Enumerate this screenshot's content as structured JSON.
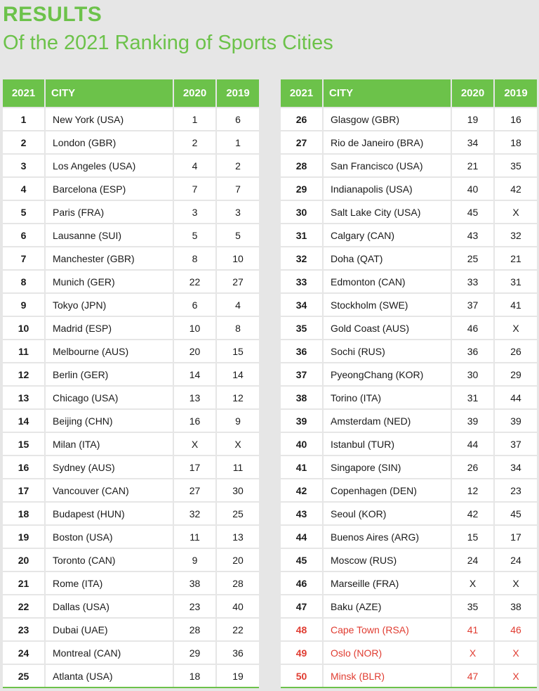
{
  "title": "RESULTS",
  "subtitle": "Of the 2021 Ranking of Sports Cities",
  "headers": {
    "rank": "2021",
    "city": "CITY",
    "y2020": "2020",
    "y2019": "2019"
  },
  "colors": {
    "accent": "#6cc24a",
    "highlight": "#e03c31"
  },
  "left_rows": [
    [
      "1",
      "New York (USA)",
      "1",
      "6"
    ],
    [
      "2",
      "London (GBR)",
      "2",
      "1"
    ],
    [
      "3",
      "Los Angeles (USA)",
      "4",
      "2"
    ],
    [
      "4",
      "Barcelona (ESP)",
      "7",
      "7"
    ],
    [
      "5",
      "Paris (FRA)",
      "3",
      "3"
    ],
    [
      "6",
      "Lausanne (SUI)",
      "5",
      "5"
    ],
    [
      "7",
      "Manchester (GBR)",
      "8",
      "10"
    ],
    [
      "8",
      "Munich (GER)",
      "22",
      "27"
    ],
    [
      "9",
      "Tokyo (JPN)",
      "6",
      "4"
    ],
    [
      "10",
      "Madrid (ESP)",
      "10",
      "8"
    ],
    [
      "11",
      "Melbourne (AUS)",
      "20",
      "15"
    ],
    [
      "12",
      "Berlin (GER)",
      "14",
      "14"
    ],
    [
      "13",
      "Chicago (USA)",
      "13",
      "12"
    ],
    [
      "14",
      "Beijing (CHN)",
      "16",
      "9"
    ],
    [
      "15",
      "Milan (ITA)",
      "X",
      "X"
    ],
    [
      "16",
      "Sydney (AUS)",
      "17",
      "11"
    ],
    [
      "17",
      "Vancouver (CAN)",
      "27",
      "30"
    ],
    [
      "18",
      "Budapest (HUN)",
      "32",
      "25"
    ],
    [
      "19",
      "Boston (USA)",
      "11",
      "13"
    ],
    [
      "20",
      "Toronto (CAN)",
      "9",
      "20"
    ],
    [
      "21",
      "Rome (ITA)",
      "38",
      "28"
    ],
    [
      "22",
      "Dallas (USA)",
      "23",
      "40"
    ],
    [
      "23",
      "Dubai (UAE)",
      "28",
      "22"
    ],
    [
      "24",
      "Montreal (CAN)",
      "29",
      "36"
    ],
    [
      "25",
      "Atlanta (USA)",
      "18",
      "19"
    ]
  ],
  "right_rows": [
    [
      "26",
      "Glasgow (GBR)",
      "19",
      "16"
    ],
    [
      "27",
      "Rio de Janeiro (BRA)",
      "34",
      "18"
    ],
    [
      "28",
      "San Francisco (USA)",
      "21",
      "35"
    ],
    [
      "29",
      "Indianapolis (USA)",
      "40",
      "42"
    ],
    [
      "30",
      "Salt Lake City (USA)",
      "45",
      "X"
    ],
    [
      "31",
      "Calgary (CAN)",
      "43",
      "32"
    ],
    [
      "32",
      "Doha (QAT)",
      "25",
      "21"
    ],
    [
      "33",
      "Edmonton (CAN)",
      "33",
      "31"
    ],
    [
      "34",
      "Stockholm (SWE)",
      "37",
      "41"
    ],
    [
      "35",
      "Gold Coast (AUS)",
      "46",
      "X"
    ],
    [
      "36",
      "Sochi (RUS)",
      "36",
      "26"
    ],
    [
      "37",
      "PyeongChang (KOR)",
      "30",
      "29"
    ],
    [
      "38",
      "Torino (ITA)",
      "31",
      "44"
    ],
    [
      "39",
      "Amsterdam (NED)",
      "39",
      "39"
    ],
    [
      "40",
      "Istanbul (TUR)",
      "44",
      "37"
    ],
    [
      "41",
      "Singapore (SIN)",
      "26",
      "34"
    ],
    [
      "42",
      "Copenhagen (DEN)",
      "12",
      "23"
    ],
    [
      "43",
      "Seoul (KOR)",
      "42",
      "45"
    ],
    [
      "44",
      "Buenos Aires (ARG)",
      "15",
      "17"
    ],
    [
      "45",
      "Moscow (RUS)",
      "24",
      "24"
    ],
    [
      "46",
      "Marseille (FRA)",
      "X",
      "X"
    ],
    [
      "47",
      "Baku (AZE)",
      "35",
      "38"
    ],
    [
      "48",
      "Cape Town (RSA)",
      "41",
      "46"
    ],
    [
      "49",
      "Oslo (NOR)",
      "X",
      "X"
    ],
    [
      "50",
      "Minsk (BLR)",
      "47",
      "X"
    ]
  ],
  "highlighted_ranks": [
    "48",
    "49",
    "50"
  ]
}
